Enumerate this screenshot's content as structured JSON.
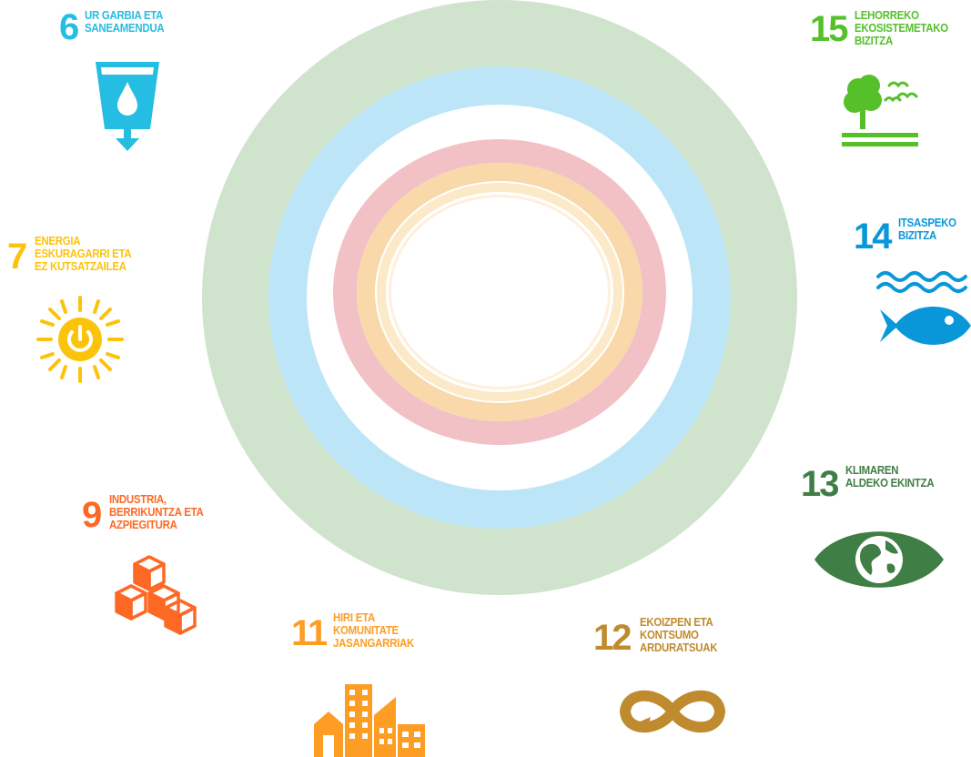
{
  "colors": {
    "ring_outer": "#cfe3cd",
    "ring_blue": "#bde5f8",
    "ring_pink": "#f2c1c6",
    "ring_orange": "#f9d8aa",
    "ring_inner": "#fce9c8",
    "goal6": "#26bde2",
    "goal7": "#fcc30b",
    "goal9": "#fd6925",
    "goal11": "#fd9d24",
    "goal12": "#bf8b2e",
    "goal13": "#3f7e44",
    "goal14": "#0a97d9",
    "goal15": "#56c02b"
  },
  "goals": {
    "g6": {
      "number": "6",
      "lines": [
        "UR GARBIA ETA",
        "SANEAMENDUA"
      ],
      "icon": "water-glass-icon"
    },
    "g7": {
      "number": "7",
      "lines": [
        "ENERGIA",
        "ESKURAGARRI ETA",
        "EZ KUTSATZAILEA"
      ],
      "icon": "sun-power-icon"
    },
    "g9": {
      "number": "9",
      "lines": [
        "INDUSTRIA,",
        "BERRIKUNTZA ETA",
        "AZPIEGITURA"
      ],
      "icon": "cubes-icon"
    },
    "g11": {
      "number": "11",
      "lines": [
        "HIRI ETA",
        "KOMUNITATE",
        "JASANGARRIAK"
      ],
      "icon": "city-buildings-icon"
    },
    "g12": {
      "number": "12",
      "lines": [
        "EKOIZPEN ETA",
        "KONTSUMO",
        "ARDURATSUAK"
      ],
      "icon": "infinity-loop-icon"
    },
    "g13": {
      "number": "13",
      "lines": [
        "KLIMAREN",
        "ALDEKO EKINTZA"
      ],
      "icon": "earth-eye-icon"
    },
    "g14": {
      "number": "14",
      "lines": [
        "ITSASPEKO",
        "BIZITZA"
      ],
      "icon": "fish-waves-icon"
    },
    "g15": {
      "number": "15",
      "lines": [
        "LEHORREKO",
        "EKOSISTEMETAKO",
        "BIZITZA"
      ],
      "icon": "tree-birds-icon"
    }
  }
}
